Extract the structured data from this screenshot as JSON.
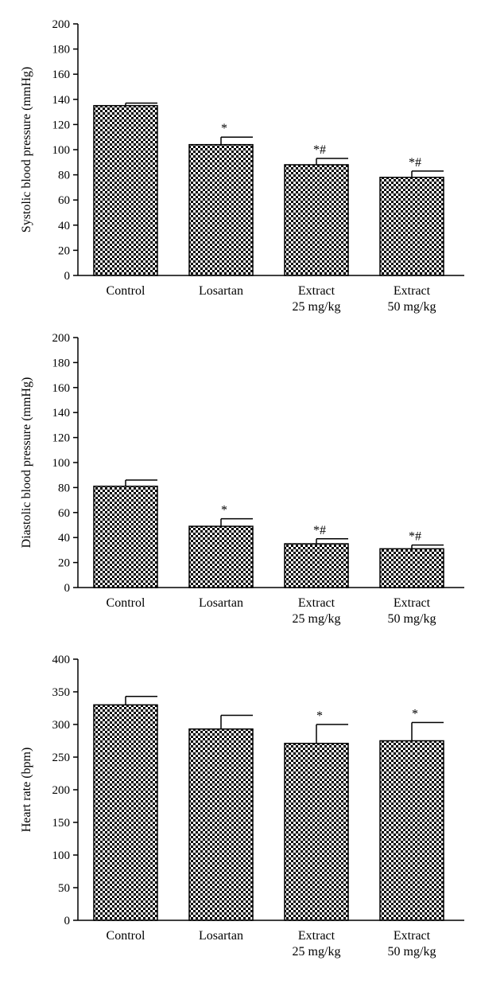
{
  "colors": {
    "background": "#ffffff",
    "ink": "#000000",
    "bar_fill": "checkerboard-pattern"
  },
  "chart_data": [
    {
      "type": "bar",
      "ylabel": "Systolic blood pressure (mmHg)",
      "ylim": [
        0,
        200
      ],
      "yticks": [
        0,
        20,
        40,
        60,
        80,
        100,
        120,
        140,
        160,
        180,
        200
      ],
      "categories": [
        [
          "Control"
        ],
        [
          "Losartan"
        ],
        [
          "Extract",
          "25 mg/kg"
        ],
        [
          "Extract",
          "50 mg/kg"
        ]
      ],
      "values": [
        135,
        104,
        88,
        78
      ],
      "errors": [
        2,
        6,
        5,
        5
      ],
      "annotations": [
        "",
        "*",
        "*#",
        "*#"
      ]
    },
    {
      "type": "bar",
      "ylabel": "Diastolic blood pressure (mmHg)",
      "ylim": [
        0,
        200
      ],
      "yticks": [
        0,
        20,
        40,
        60,
        80,
        100,
        120,
        140,
        160,
        180,
        200
      ],
      "categories": [
        [
          "Control"
        ],
        [
          "Losartan"
        ],
        [
          "Extract",
          "25 mg/kg"
        ],
        [
          "Extract",
          "50 mg/kg"
        ]
      ],
      "values": [
        81,
        49,
        35,
        31
      ],
      "errors": [
        5,
        6,
        4,
        3
      ],
      "annotations": [
        "",
        "*",
        "*#",
        "*#"
      ]
    },
    {
      "type": "bar",
      "ylabel": "Heart rate (bpm)",
      "ylim": [
        0,
        400
      ],
      "yticks": [
        0,
        50,
        100,
        150,
        200,
        250,
        300,
        350,
        400
      ],
      "categories": [
        [
          "Control"
        ],
        [
          "Losartan"
        ],
        [
          "Extract",
          "25 mg/kg"
        ],
        [
          "Extract",
          "50 mg/kg"
        ]
      ],
      "values": [
        330,
        293,
        271,
        275
      ],
      "errors": [
        13,
        21,
        29,
        28
      ],
      "annotations": [
        "",
        "",
        "*",
        "*"
      ]
    }
  ]
}
